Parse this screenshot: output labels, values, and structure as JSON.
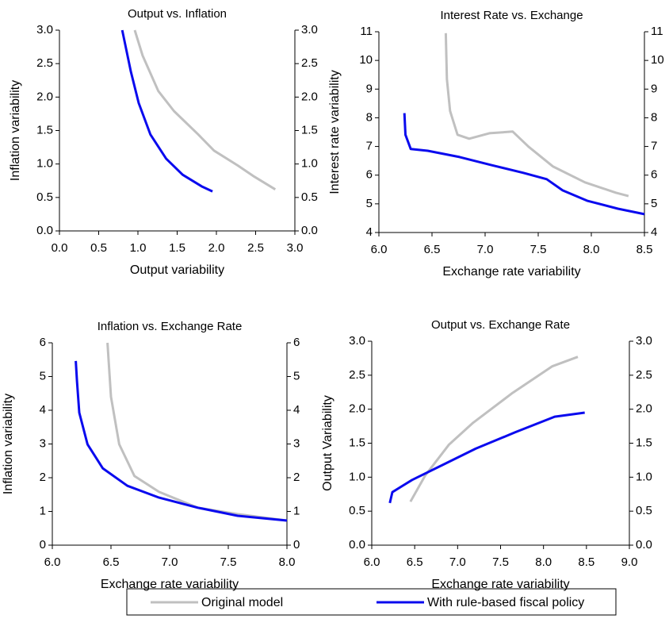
{
  "chart_data": [
    {
      "type": "line",
      "title": "Output vs. Inflation",
      "x_label": "Output  variability",
      "y_label": "Inflation variability",
      "xlim": [
        0,
        3
      ],
      "xticks": [
        {
          "value": 0,
          "label": "0.0"
        },
        0.5,
        {
          "value": 1,
          "label": "1.0"
        },
        1.5,
        {
          "value": 2,
          "label": "2.0"
        },
        2.5,
        {
          "value": 3,
          "label": "3.0"
        }
      ],
      "ylim": [
        0,
        3
      ],
      "yticks": [
        {
          "value": 0,
          "label": "0.0"
        },
        0.5,
        {
          "value": 1,
          "label": "1.0"
        },
        1.5,
        {
          "value": 2,
          "label": "2.0"
        },
        2.5,
        {
          "value": 3,
          "label": "3.0"
        }
      ],
      "y2lim": [
        0,
        3
      ],
      "y2ticks": [
        {
          "value": 0,
          "label": "0.0"
        },
        0.5,
        {
          "value": 1,
          "label": "1.0"
        },
        1.5,
        {
          "value": 2,
          "label": "2.0"
        },
        2.5,
        {
          "value": 3,
          "label": "3.0"
        }
      ],
      "series": [
        {
          "name": "Original model",
          "color": "#c0c0c0",
          "x": [
            0.96,
            1.06,
            1.26,
            1.46,
            1.77,
            1.97,
            2.27,
            2.47,
            2.75
          ],
          "values": [
            3.0,
            2.62,
            2.09,
            1.79,
            1.44,
            1.2,
            0.98,
            0.82,
            0.62
          ]
        },
        {
          "name": "With rule-based fiscal policy",
          "color": "#0a0aee",
          "x": [
            0.8,
            0.91,
            1.01,
            1.16,
            1.36,
            1.57,
            1.82,
            1.95
          ],
          "values": [
            3.0,
            2.38,
            1.91,
            1.44,
            1.08,
            0.84,
            0.66,
            0.59
          ]
        }
      ]
    },
    {
      "type": "line",
      "title": "Interest Rate vs. Exchange",
      "x_label": "Exchange rate variability",
      "y_label": "Interest rate variability",
      "xlim": [
        6,
        8.5
      ],
      "xticks": [
        {
          "value": 6,
          "label": "6.0"
        },
        6.5,
        {
          "value": 7,
          "label": "7.0"
        },
        7.5,
        {
          "value": 8,
          "label": "8.0"
        },
        8.5
      ],
      "ylim": [
        4,
        11
      ],
      "yticks": [
        4,
        5,
        6,
        7,
        8,
        9,
        10,
        11
      ],
      "y2lim": [
        4,
        11
      ],
      "y2ticks": [
        4,
        5,
        6,
        7,
        8,
        9,
        10,
        11
      ],
      "series": [
        {
          "color": "#c0c0c0",
          "x": [
            6.63,
            6.64,
            6.67,
            6.74,
            6.85,
            7.04,
            7.26,
            7.41,
            7.64,
            7.94,
            8.23,
            8.35
          ],
          "values": [
            10.95,
            9.35,
            8.24,
            7.41,
            7.27,
            7.46,
            7.52,
            6.99,
            6.3,
            5.75,
            5.39,
            5.27
          ]
        },
        {
          "color": "#0a0aee",
          "x": [
            6.24,
            6.25,
            6.3,
            6.46,
            6.76,
            7.06,
            7.36,
            7.58,
            7.73,
            7.96,
            8.25,
            8.5
          ],
          "values": [
            8.16,
            7.41,
            6.91,
            6.85,
            6.63,
            6.35,
            6.08,
            5.86,
            5.47,
            5.11,
            4.83,
            4.64
          ]
        }
      ]
    },
    {
      "type": "line",
      "title": "Inflation vs. Exchange Rate",
      "x_label": "Exchange rate variability",
      "y_label": "Inflation variability",
      "xlim": [
        6,
        8
      ],
      "xticks": [
        {
          "value": 6,
          "label": "6.0"
        },
        6.5,
        {
          "value": 7,
          "label": "7.0"
        },
        7.5,
        {
          "value": 8,
          "label": "8.0"
        }
      ],
      "ylim": [
        0,
        6
      ],
      "yticks": [
        0,
        1,
        2,
        3,
        4,
        5,
        6
      ],
      "y2lim": [
        0,
        6
      ],
      "y2ticks": [
        0,
        1,
        2,
        3,
        4,
        5,
        6
      ],
      "series": [
        {
          "color": "#c0c0c0",
          "x": [
            6.47,
            6.5,
            6.57,
            6.7,
            6.91,
            7.24,
            7.58,
            8.0
          ],
          "values": [
            6.0,
            4.4,
            2.99,
            2.05,
            1.58,
            1.11,
            0.92,
            0.73
          ]
        },
        {
          "color": "#0a0aee",
          "x": [
            6.2,
            6.21,
            6.23,
            6.3,
            6.43,
            6.64,
            6.91,
            7.24,
            7.58,
            8.0
          ],
          "values": [
            5.46,
            4.87,
            3.93,
            2.99,
            2.28,
            1.76,
            1.41,
            1.11,
            0.87,
            0.73
          ]
        }
      ]
    },
    {
      "type": "line",
      "title": "Output vs. Exchange Rate",
      "x_label": "Exchange rate variability",
      "y_label": "Output Variability",
      "xlim": [
        6,
        9
      ],
      "xticks": [
        {
          "value": 6,
          "label": "6.0"
        },
        6.5,
        {
          "value": 7,
          "label": "7.0"
        },
        7.5,
        {
          "value": 8,
          "label": "8.0"
        },
        8.5,
        {
          "value": 9,
          "label": "9.0"
        }
      ],
      "ylim": [
        0,
        3
      ],
      "yticks": [
        {
          "value": 0,
          "label": "0.0"
        },
        0.5,
        {
          "value": 1,
          "label": "1.0"
        },
        1.5,
        {
          "value": 2,
          "label": "2.0"
        },
        2.5,
        {
          "value": 3,
          "label": "3.0"
        }
      ],
      "y2lim": [
        0,
        3
      ],
      "y2ticks": [
        {
          "value": 0,
          "label": "0.0"
        },
        0.5,
        {
          "value": 1,
          "label": "1.0"
        },
        1.5,
        {
          "value": 2,
          "label": "2.0"
        },
        2.5,
        {
          "value": 3,
          "label": "3.0"
        }
      ],
      "series": [
        {
          "color": "#c0c0c0",
          "x": [
            6.45,
            6.62,
            6.9,
            7.18,
            7.64,
            8.1,
            8.4
          ],
          "values": [
            0.64,
            1.02,
            1.48,
            1.8,
            2.24,
            2.63,
            2.77
          ]
        },
        {
          "color": "#0a0aee",
          "x": [
            6.21,
            6.24,
            6.47,
            6.84,
            7.21,
            7.67,
            8.13,
            8.48
          ],
          "values": [
            0.62,
            0.78,
            0.96,
            1.19,
            1.42,
            1.66,
            1.89,
            1.95
          ]
        }
      ]
    }
  ]
}
